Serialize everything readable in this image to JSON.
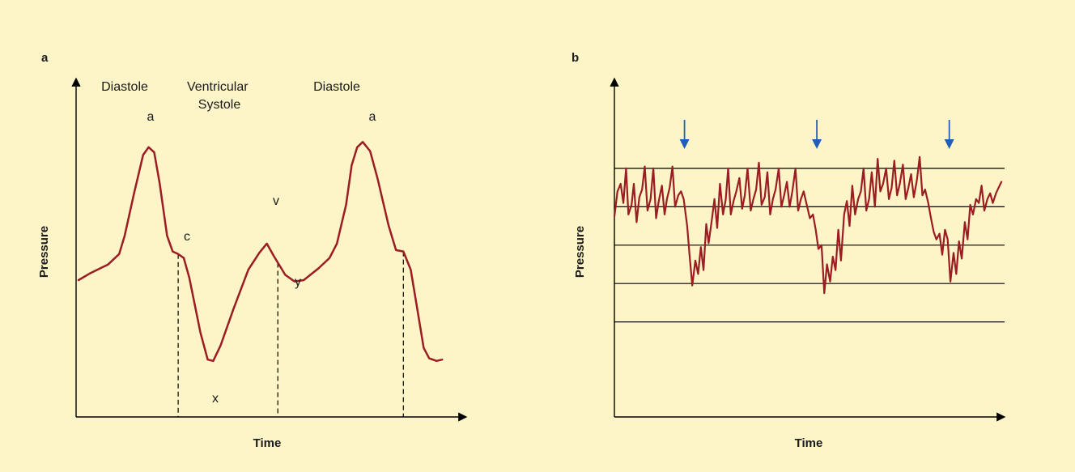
{
  "colors": {
    "background": "#fdf5c7",
    "trace": "#9b1c22",
    "axis": "#000000",
    "arrow": "#1f5fb8"
  },
  "chart_data": [
    {
      "type": "line",
      "panel": "a",
      "xlabel": "Time",
      "ylabel": "Pressure",
      "phases": [
        "Diastole",
        "Ventricular\nSystole",
        "Diastole"
      ],
      "wave_labels": [
        "a",
        "c",
        "x",
        "v",
        "y",
        "a"
      ],
      "grid": false,
      "xlim": [
        0,
        100
      ],
      "ylim": [
        0,
        100
      ],
      "series": [
        {
          "values": [
            [
              0,
              41
            ],
            [
              3,
              43.5
            ],
            [
              8,
              47
            ],
            [
              11,
              51
            ],
            [
              12.5,
              58
            ],
            [
              15,
              74
            ],
            [
              17.5,
              89
            ],
            [
              19,
              92
            ],
            [
              20.5,
              90
            ],
            [
              22,
              78
            ],
            [
              24,
              58
            ],
            [
              25.5,
              52
            ],
            [
              27,
              51
            ],
            [
              28.5,
              49.5
            ],
            [
              30,
              42
            ],
            [
              33,
              21
            ],
            [
              35,
              10.5
            ],
            [
              36.5,
              10
            ],
            [
              38.5,
              16
            ],
            [
              42,
              30
            ],
            [
              46,
              45
            ],
            [
              49,
              51.5
            ],
            [
              51,
              55
            ],
            [
              53,
              50
            ],
            [
              56,
              43
            ],
            [
              58.5,
              40.5
            ],
            [
              61,
              41
            ],
            [
              65,
              45.5
            ],
            [
              68,
              49.5
            ],
            [
              70,
              55
            ],
            [
              72.5,
              70
            ],
            [
              74,
              85
            ],
            [
              75.5,
              92
            ],
            [
              77,
              94
            ],
            [
              79,
              90.5
            ],
            [
              81,
              80
            ],
            [
              84,
              62
            ],
            [
              86,
              52.5
            ],
            [
              88,
              52
            ],
            [
              90,
              45
            ],
            [
              92,
              28
            ],
            [
              93.5,
              15
            ],
            [
              95,
              11
            ],
            [
              97,
              10
            ],
            [
              98.5,
              10.5
            ]
          ]
        }
      ],
      "dashed_x": [
        27,
        54,
        88
      ]
    },
    {
      "type": "line",
      "panel": "b",
      "xlabel": "Time",
      "ylabel": "Pressure",
      "grid": true,
      "markers": "arrows",
      "arrow_x": [
        18,
        52,
        86
      ],
      "xlim": [
        0,
        100
      ],
      "ylim": [
        0,
        100
      ],
      "gridlines": [
        20,
        40,
        60,
        80,
        100
      ],
      "series": [
        {
          "values": [
            [
              0,
              75
            ],
            [
              0.8,
              88
            ],
            [
              1.6,
              92
            ],
            [
              2.3,
              82
            ],
            [
              3,
              100
            ],
            [
              3.6,
              76
            ],
            [
              4.4,
              81
            ],
            [
              5,
              92
            ],
            [
              5.7,
              72
            ],
            [
              6.4,
              85
            ],
            [
              7.1,
              89
            ],
            [
              7.8,
              101
            ],
            [
              8.5,
              78
            ],
            [
              9.3,
              84
            ],
            [
              10,
              100
            ],
            [
              10.7,
              74
            ],
            [
              11.4,
              83
            ],
            [
              12.2,
              91
            ],
            [
              12.9,
              76
            ],
            [
              13.5,
              84
            ],
            [
              14.2,
              90
            ],
            [
              14.9,
              101
            ],
            [
              15.6,
              80
            ],
            [
              16.4,
              86
            ],
            [
              17.1,
              88
            ],
            [
              17.8,
              84
            ],
            [
              18.7,
              70
            ],
            [
              19.3,
              55
            ],
            [
              20,
              39
            ],
            [
              20.8,
              52
            ],
            [
              21.5,
              45
            ],
            [
              22.2,
              59
            ],
            [
              22.9,
              47
            ],
            [
              23.6,
              71
            ],
            [
              24.2,
              61
            ],
            [
              25,
              73
            ],
            [
              25.7,
              84
            ],
            [
              26.4,
              69
            ],
            [
              27.1,
              92
            ],
            [
              27.9,
              76
            ],
            [
              28.6,
              84
            ],
            [
              29.2,
              100
            ],
            [
              29.9,
              76
            ],
            [
              30.6,
              83
            ],
            [
              31.3,
              88
            ],
            [
              32.1,
              95
            ],
            [
              32.8,
              79
            ],
            [
              33.5,
              86
            ],
            [
              34.2,
              100
            ],
            [
              35,
              78
            ],
            [
              35.7,
              84
            ],
            [
              36.4,
              89
            ],
            [
              37.1,
              103
            ],
            [
              37.8,
              81
            ],
            [
              38.6,
              85
            ],
            [
              39.3,
              98
            ],
            [
              40,
              76
            ],
            [
              40.7,
              84
            ],
            [
              41.4,
              89
            ],
            [
              42.2,
              100
            ],
            [
              42.9,
              80
            ],
            [
              43.6,
              86
            ],
            [
              44.3,
              93
            ],
            [
              45,
              80
            ],
            [
              45.7,
              88
            ],
            [
              46.5,
              100
            ],
            [
              47.2,
              78
            ],
            [
              47.9,
              84
            ],
            [
              48.6,
              88
            ],
            [
              49.3,
              82
            ],
            [
              50.2,
              74
            ],
            [
              51,
              76
            ],
            [
              51.7,
              68
            ],
            [
              52.4,
              58
            ],
            [
              53.2,
              60
            ],
            [
              53.9,
              35
            ],
            [
              54.6,
              50
            ],
            [
              55.4,
              41
            ],
            [
              56.1,
              54
            ],
            [
              56.8,
              47
            ],
            [
              57.5,
              68
            ],
            [
              58.2,
              52
            ],
            [
              59,
              76
            ],
            [
              59.7,
              83
            ],
            [
              60.4,
              70
            ],
            [
              61.1,
              91
            ],
            [
              61.8,
              76
            ],
            [
              62.6,
              84
            ],
            [
              63.3,
              88
            ],
            [
              64,
              100
            ],
            [
              64.7,
              78
            ],
            [
              65.4,
              84
            ],
            [
              66.1,
              98
            ],
            [
              66.9,
              80
            ],
            [
              67.6,
              105
            ],
            [
              68.3,
              88
            ],
            [
              69,
              92
            ],
            [
              69.8,
              100
            ],
            [
              70.5,
              84
            ],
            [
              71.2,
              90
            ],
            [
              71.9,
              104
            ],
            [
              72.6,
              86
            ],
            [
              73.3,
              92
            ],
            [
              74.1,
              102
            ],
            [
              74.8,
              84
            ],
            [
              75.5,
              90
            ],
            [
              76.2,
              97
            ],
            [
              76.9,
              85
            ],
            [
              77.7,
              94
            ],
            [
              78.4,
              106
            ],
            [
              79.1,
              86
            ],
            [
              79.8,
              89
            ],
            [
              80.6,
              82
            ],
            [
              81.3,
              74
            ],
            [
              82,
              67
            ],
            [
              82.7,
              63
            ],
            [
              83.5,
              66
            ],
            [
              84.2,
              55
            ],
            [
              84.9,
              68
            ],
            [
              85.6,
              63
            ],
            [
              86.3,
              41
            ],
            [
              87.1,
              56
            ],
            [
              87.8,
              45
            ],
            [
              88.5,
              62
            ],
            [
              89.2,
              53
            ],
            [
              90,
              72
            ],
            [
              90.7,
              63
            ],
            [
              91.4,
              81
            ],
            [
              92.1,
              76
            ],
            [
              92.9,
              84
            ],
            [
              93.6,
              82
            ],
            [
              94.3,
              91
            ],
            [
              95,
              78
            ],
            [
              95.8,
              84
            ],
            [
              96.5,
              87
            ],
            [
              97.2,
              82
            ],
            [
              98,
              87
            ],
            [
              98.7,
              90
            ],
            [
              99.4,
              93
            ]
          ]
        }
      ]
    }
  ]
}
